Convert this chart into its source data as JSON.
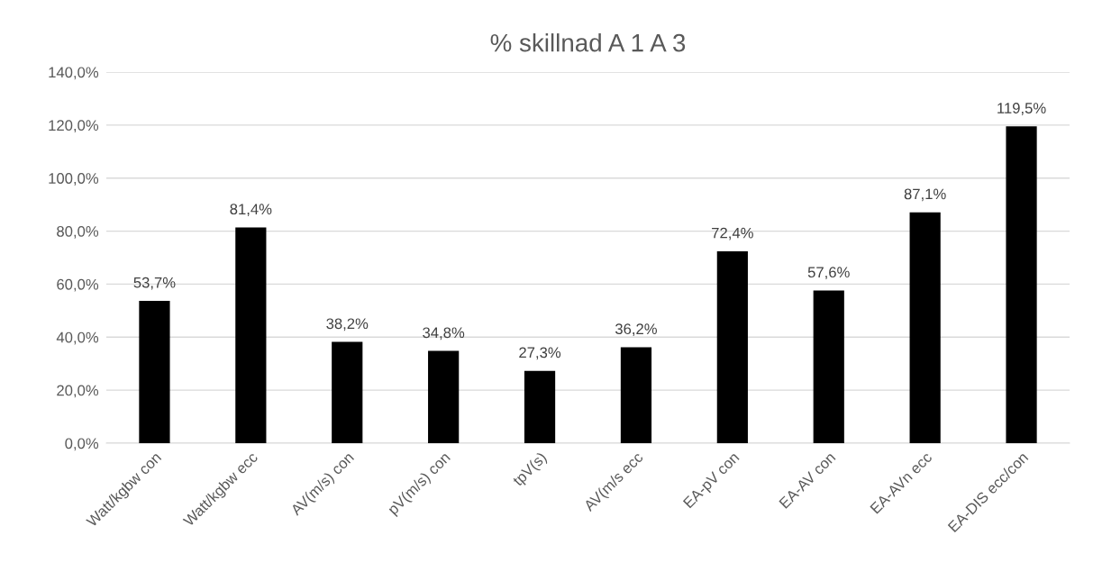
{
  "chart_data": {
    "type": "bar",
    "title": "% skillnad A 1 A 3",
    "categories": [
      "Watt/kgbw con",
      "Watt/kgbw ecc",
      "AV(m/s) con",
      "pV(m/s) con",
      "tpV(s)",
      "AV(m/s ecc",
      "EA-pV con",
      "EA-AV con",
      "EA-AVn ecc",
      "EA-DIS ecc/con"
    ],
    "values": [
      53.7,
      81.4,
      38.2,
      34.8,
      27.3,
      36.2,
      72.4,
      57.6,
      87.1,
      119.5
    ],
    "value_labels": [
      "53,7%",
      "81,4%",
      "38,2%",
      "34,8%",
      "27,3%",
      "36,2%",
      "72,4%",
      "57,6%",
      "87,1%",
      "119,5%"
    ],
    "color": "#000000",
    "ylim": [
      0,
      140
    ],
    "yticks": [
      {
        "value": 0,
        "label": "0,0%"
      },
      {
        "value": 20,
        "label": "20,0%"
      },
      {
        "value": 40,
        "label": "40,0%"
      },
      {
        "value": 60,
        "label": "60,0%"
      },
      {
        "value": 80,
        "label": "80,0%"
      },
      {
        "value": 100,
        "label": "100,0%"
      },
      {
        "value": 120,
        "label": "120,0%"
      },
      {
        "value": 140,
        "label": "140,0%"
      }
    ],
    "grid": "y",
    "legend": false
  }
}
